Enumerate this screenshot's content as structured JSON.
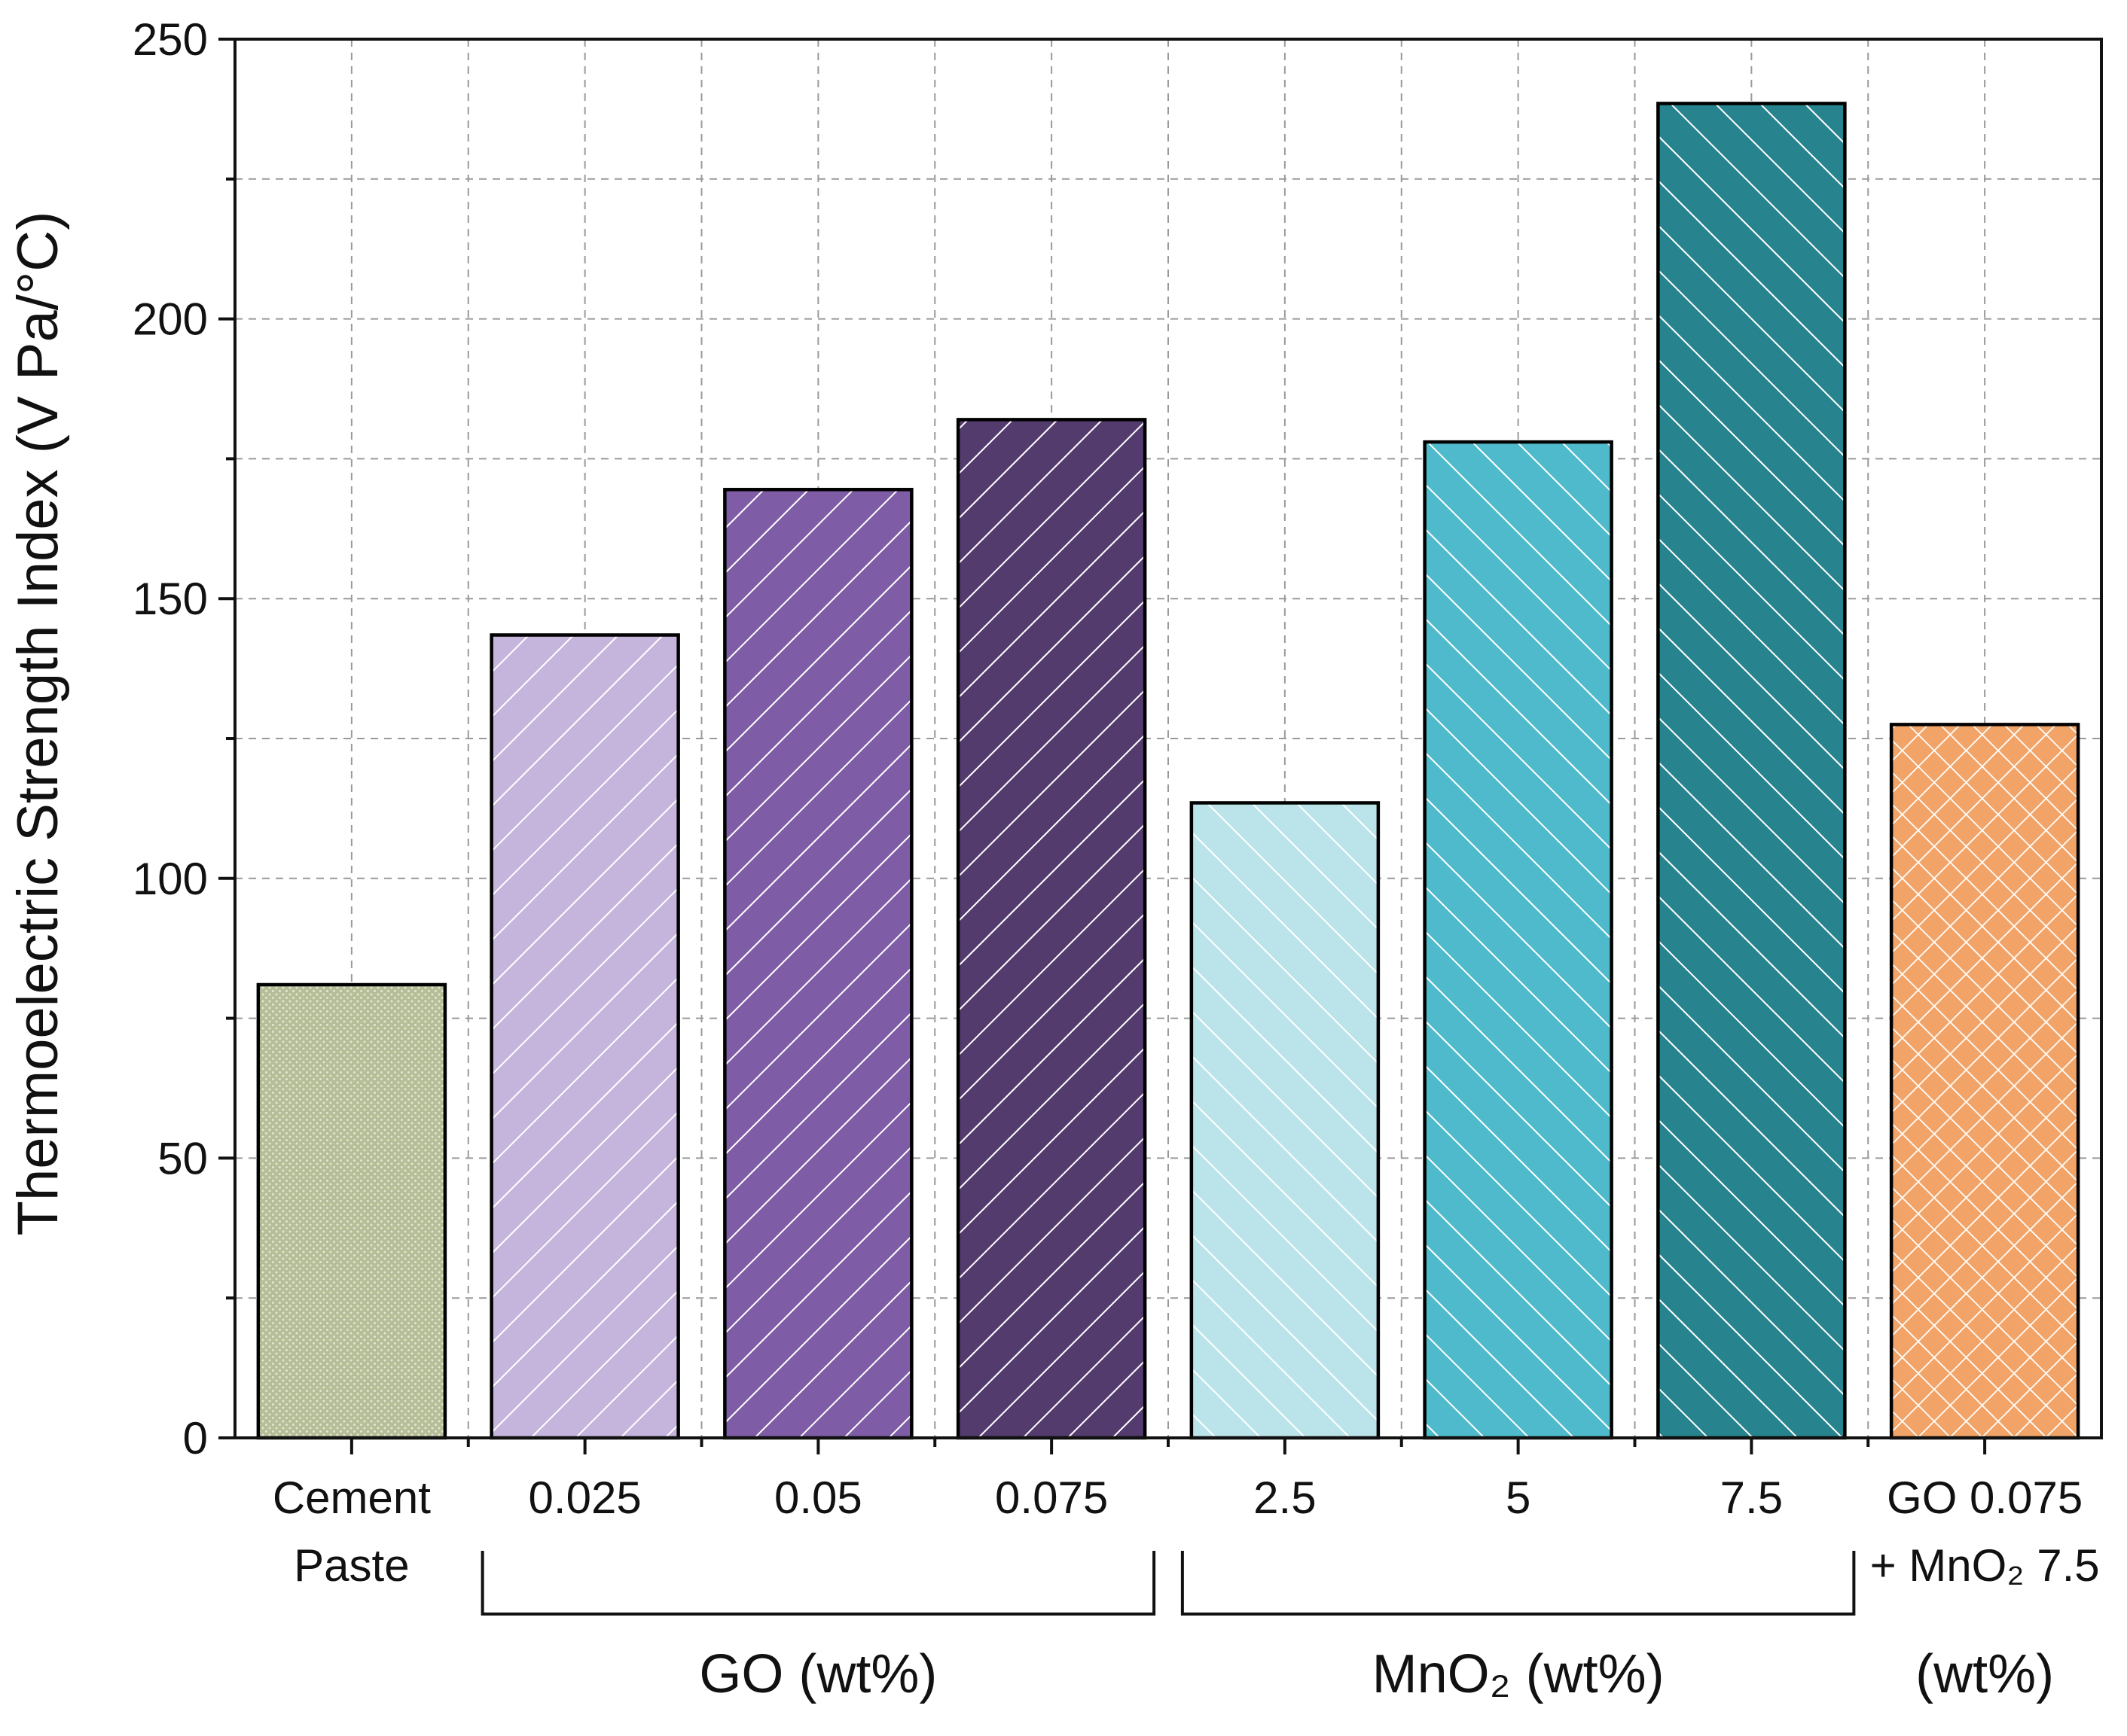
{
  "chart_data": {
    "type": "bar",
    "title": "",
    "ylabel": "Thermoelectric Strength Index (V Pa/°C)",
    "ylim": [
      0,
      250
    ],
    "yticks": [
      "0",
      "50",
      "100",
      "150",
      "200",
      "250"
    ],
    "grid": true,
    "categories": [
      {
        "lines": [
          "Cement",
          "Paste"
        ],
        "value": 81,
        "color": "#b5be96",
        "pattern": "dots"
      },
      {
        "lines": [
          "0.025"
        ],
        "value": 143.5,
        "color": "#c5b4dc",
        "pattern": "diag-right"
      },
      {
        "lines": [
          "0.05"
        ],
        "value": 169.5,
        "color": "#7e5ca6",
        "pattern": "diag-right"
      },
      {
        "lines": [
          "0.075"
        ],
        "value": 182,
        "color": "#533b6e",
        "pattern": "diag-right"
      },
      {
        "lines": [
          "2.5"
        ],
        "value": 113.5,
        "color": "#bae4ea",
        "pattern": "diag-left"
      },
      {
        "lines": [
          "5"
        ],
        "value": 178,
        "color": "#4ebacb",
        "pattern": "diag-left"
      },
      {
        "lines": [
          "7.5"
        ],
        "value": 238.5,
        "color": "#27838d",
        "pattern": "diag-left"
      },
      {
        "lines": [
          "GO 0.075",
          "+ MnO₂ 7.5"
        ],
        "value": 127.5,
        "color": "#f2a468",
        "pattern": "crosshatch"
      }
    ],
    "groups": [
      {
        "label": "GO (wt%)",
        "from": 1,
        "to": 3
      },
      {
        "label": "MnO₂ (wt%)",
        "from": 4,
        "to": 6
      },
      {
        "label": "(wt%)",
        "from": 7,
        "to": 7,
        "bracket": false
      }
    ]
  }
}
